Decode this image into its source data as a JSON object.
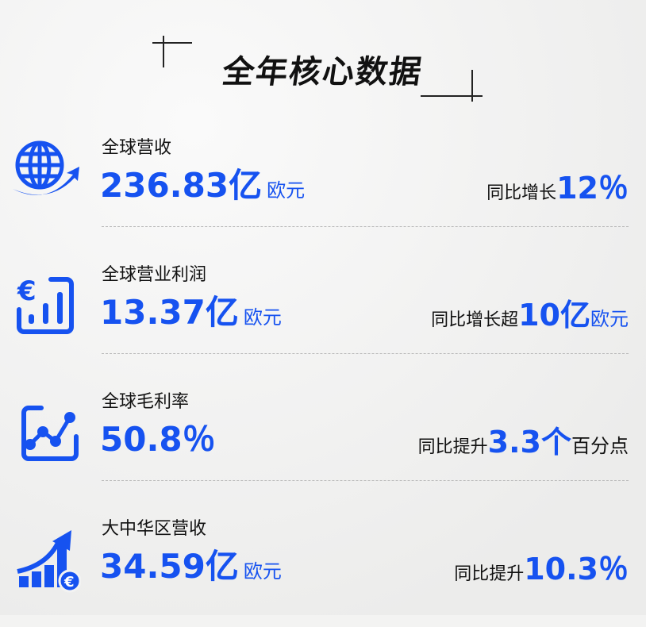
{
  "title": "全年核心数据",
  "accent": "#1652f0",
  "rows": [
    {
      "icon": "globe-arrow-icon",
      "label": "全球营收",
      "value": "236.83亿",
      "unit": "欧元",
      "cmp_prefix": "同比增长",
      "cmp_value": "12％",
      "cmp_suffix": ""
    },
    {
      "icon": "euro-bar-chart-icon",
      "label": "全球营业利润",
      "value": "13.37亿",
      "unit": "欧元",
      "cmp_prefix": "同比增长超",
      "cmp_value": "10亿",
      "cmp_suffix": "欧元"
    },
    {
      "icon": "line-chart-icon",
      "label": "全球毛利率",
      "value": "50.8％",
      "unit": "",
      "cmp_prefix": "同比提升",
      "cmp_value": "3.3个",
      "cmp_suffix": "百分点"
    },
    {
      "icon": "growth-euro-icon",
      "label": "大中华区营收",
      "value": "34.59亿",
      "unit": "欧元",
      "cmp_prefix": "同比提升",
      "cmp_value": "10.3％",
      "cmp_suffix": ""
    }
  ]
}
